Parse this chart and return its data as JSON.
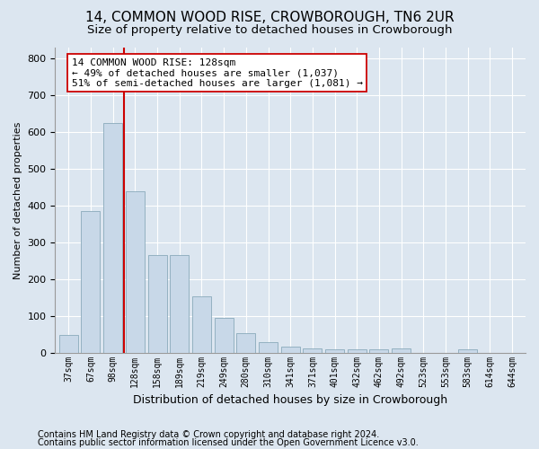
{
  "title": "14, COMMON WOOD RISE, CROWBOROUGH, TN6 2UR",
  "subtitle": "Size of property relative to detached houses in Crowborough",
  "xlabel": "Distribution of detached houses by size in Crowborough",
  "ylabel": "Number of detached properties",
  "footnote1": "Contains HM Land Registry data © Crown copyright and database right 2024.",
  "footnote2": "Contains public sector information licensed under the Open Government Licence v3.0.",
  "categories": [
    "37sqm",
    "67sqm",
    "98sqm",
    "128sqm",
    "158sqm",
    "189sqm",
    "219sqm",
    "249sqm",
    "280sqm",
    "310sqm",
    "341sqm",
    "371sqm",
    "401sqm",
    "432sqm",
    "462sqm",
    "492sqm",
    "523sqm",
    "553sqm",
    "583sqm",
    "614sqm",
    "644sqm"
  ],
  "values": [
    48,
    385,
    625,
    438,
    265,
    265,
    155,
    95,
    55,
    30,
    18,
    12,
    11,
    11,
    11,
    12,
    0,
    0,
    10,
    0,
    0
  ],
  "bar_color": "#c8d8e8",
  "bar_edge_color": "#8aaabb",
  "vline_x": 2.5,
  "vline_color": "#cc0000",
  "annotation_line1": "14 COMMON WOOD RISE: 128sqm",
  "annotation_line2": "← 49% of detached houses are smaller (1,037)",
  "annotation_line3": "51% of semi-detached houses are larger (1,081) →",
  "annotation_box_color": "#ffffff",
  "annotation_box_edge": "#cc0000",
  "ylim": [
    0,
    830
  ],
  "yticks": [
    0,
    100,
    200,
    300,
    400,
    500,
    600,
    700,
    800
  ],
  "background_color": "#dce6f0",
  "plot_background": "#dce6f0",
  "grid_color": "#ffffff",
  "title_fontsize": 11,
  "subtitle_fontsize": 9.5,
  "annot_fontsize": 8,
  "xlabel_fontsize": 9,
  "ylabel_fontsize": 8,
  "footnote_fontsize": 7
}
